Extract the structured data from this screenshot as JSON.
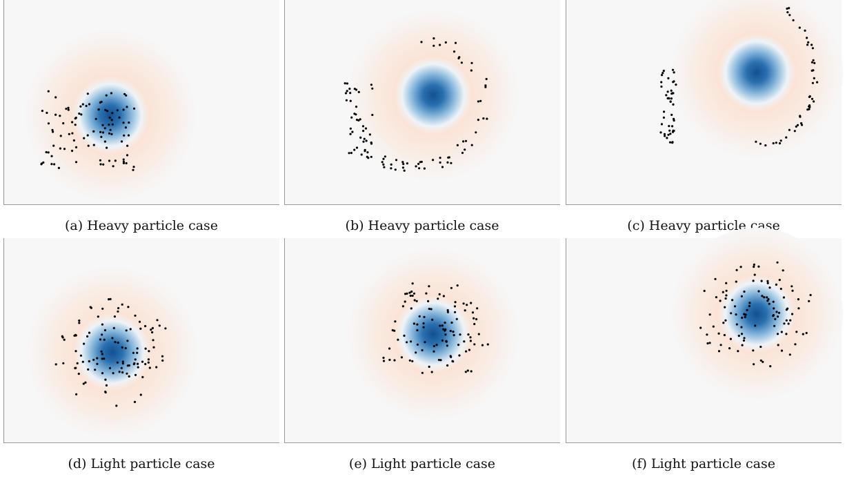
{
  "figure": {
    "captions": [
      "(a) Heavy particle case",
      "(b) Heavy particle case",
      "(c) Heavy particle case",
      "(d) Light particle case",
      "(e) Light particle case",
      "(f) Light particle case"
    ]
  }
}
